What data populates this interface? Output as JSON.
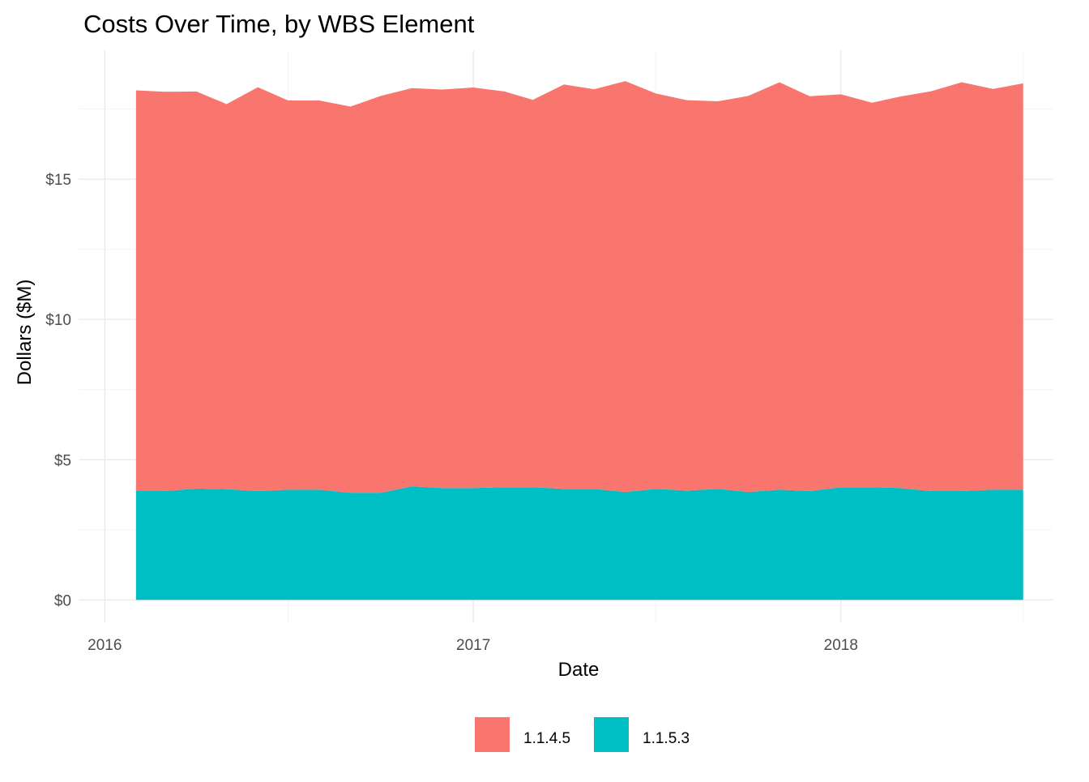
{
  "chart_data": {
    "type": "area",
    "stacked": true,
    "title": "Costs Over Time, by WBS Element",
    "xlabel": "Date",
    "ylabel": "Dollars ($M)",
    "x_ticks": [
      "2016",
      "2017",
      "2018"
    ],
    "y_ticks": [
      "$0",
      "$5",
      "$10",
      "$15"
    ],
    "y_tick_values": [
      0,
      5,
      10,
      15
    ],
    "ylim": [
      -0.8,
      19.6
    ],
    "xlim": [
      "2015-12-06",
      "2018-07-31"
    ],
    "grid": true,
    "legend_position": "bottom",
    "x": [
      "2016-02-01",
      "2016-03-01",
      "2016-04-01",
      "2016-05-01",
      "2016-06-01",
      "2016-07-01",
      "2016-08-01",
      "2016-09-01",
      "2016-10-01",
      "2016-11-01",
      "2016-12-01",
      "2017-01-01",
      "2017-02-01",
      "2017-03-01",
      "2017-04-01",
      "2017-05-01",
      "2017-06-01",
      "2017-07-01",
      "2017-08-01",
      "2017-09-01",
      "2017-10-01",
      "2017-11-01",
      "2017-12-01",
      "2018-01-01",
      "2018-02-01",
      "2018-03-01",
      "2018-04-01",
      "2018-05-01",
      "2018-06-01",
      "2018-07-01"
    ],
    "series": [
      {
        "name": "1.1.5.3",
        "color": "#00BFC4",
        "values": [
          3.88,
          3.88,
          3.97,
          3.95,
          3.88,
          3.93,
          3.93,
          3.82,
          3.82,
          4.05,
          3.99,
          3.99,
          4.02,
          4.02,
          3.96,
          3.96,
          3.85,
          3.96,
          3.9,
          3.96,
          3.85,
          3.93,
          3.88,
          4.02,
          4.02,
          3.99,
          3.88,
          3.88,
          3.93,
          3.93
        ]
      },
      {
        "name": "1.1.4.5",
        "color": "#F8766D",
        "values": [
          14.29,
          14.24,
          14.16,
          13.73,
          14.4,
          13.88,
          13.88,
          13.77,
          14.15,
          14.2,
          14.21,
          14.28,
          14.11,
          13.81,
          14.42,
          14.25,
          14.65,
          14.1,
          13.92,
          13.82,
          14.12,
          14.53,
          14.08,
          14.01,
          13.71,
          13.96,
          14.26,
          14.58,
          14.29,
          14.49
        ]
      }
    ]
  }
}
